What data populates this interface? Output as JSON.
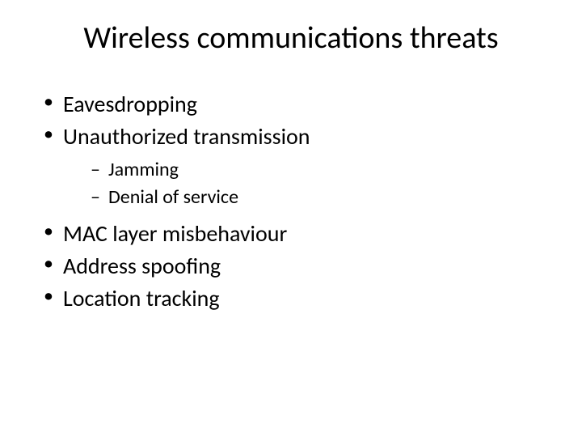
{
  "slide": {
    "title": "Wireless communications threats",
    "bullets": [
      {
        "text": "Eavesdropping"
      },
      {
        "text": "Unauthorized transmission",
        "children": [
          {
            "text": "Jamming"
          },
          {
            "text": "Denial of service"
          }
        ]
      },
      {
        "text": "MAC layer misbehaviour"
      },
      {
        "text": "Address spoofing"
      },
      {
        "text": "Location tracking"
      }
    ]
  },
  "style": {
    "background_color": "#ffffff",
    "text_color": "#000000",
    "title_fontsize": 38,
    "level1_fontsize": 28,
    "level2_fontsize": 24,
    "font_family": "Calibri"
  }
}
